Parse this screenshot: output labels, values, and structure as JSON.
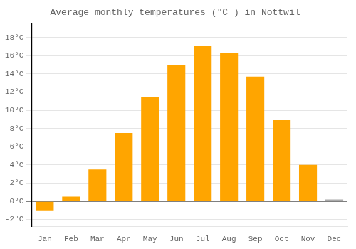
{
  "chart_data": {
    "type": "bar",
    "title": "Average monthly temperatures (°C ) in Nottwil",
    "categories": [
      "Jan",
      "Feb",
      "Mar",
      "Apr",
      "May",
      "Jun",
      "Jul",
      "Aug",
      "Sep",
      "Oct",
      "Nov",
      "Dec"
    ],
    "values": [
      -1.0,
      0.5,
      3.5,
      7.5,
      11.5,
      15.0,
      17.1,
      16.3,
      13.7,
      9.0,
      4.0,
      0.2
    ],
    "colors": [
      "#FFA500",
      "#FFA500",
      "#FFA500",
      "#FFA500",
      "#FFA500",
      "#FFA500",
      "#FFA500",
      "#FFA500",
      "#FFA500",
      "#FFA500",
      "#FFA500",
      "#aaaaaa"
    ],
    "ylim": [
      -2.8,
      19.5
    ],
    "yticks": [
      {
        "value": -2,
        "label": "-2°C"
      },
      {
        "value": 0,
        "label": "0°C"
      },
      {
        "value": 2,
        "label": "2°C"
      },
      {
        "value": 4,
        "label": "4°C"
      },
      {
        "value": 6,
        "label": "6°C"
      },
      {
        "value": 8,
        "label": "8°C"
      },
      {
        "value": 10,
        "label": "10°C"
      },
      {
        "value": 12,
        "label": "12°C"
      },
      {
        "value": 14,
        "label": "14°C"
      },
      {
        "value": 16,
        "label": "16°C"
      },
      {
        "value": 18,
        "label": "18°C"
      }
    ],
    "grid": true
  }
}
